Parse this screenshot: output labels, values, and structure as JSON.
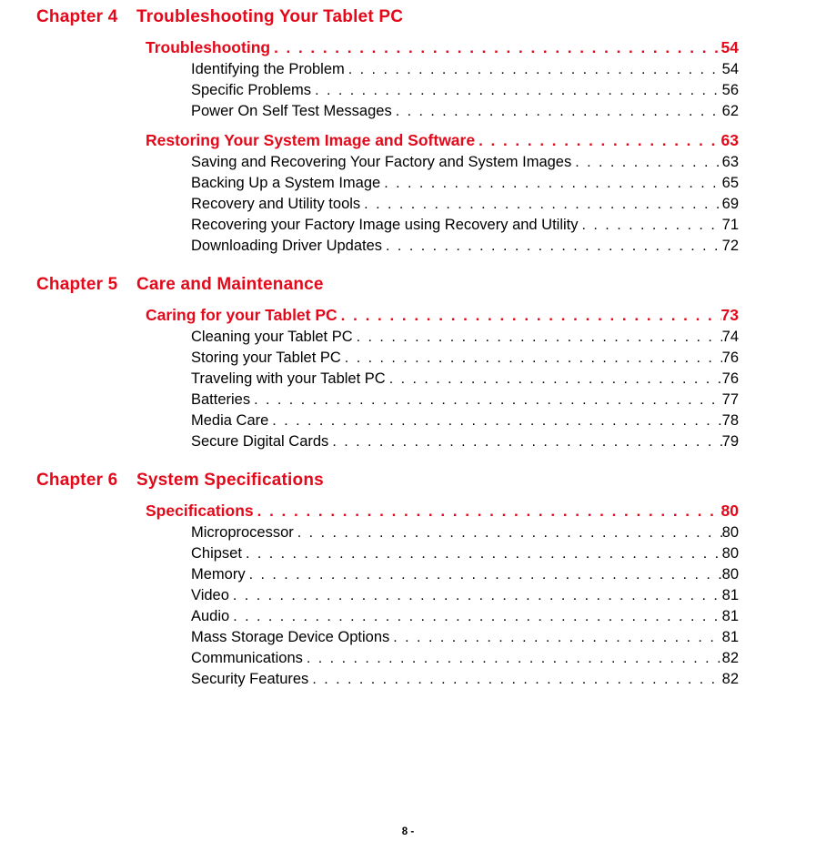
{
  "footer": "8 -",
  "colors": {
    "accent": "#e3091a",
    "text": "#000000",
    "background": "#ffffff"
  },
  "chapters": [
    {
      "num": "Chapter 4",
      "title": "Troubleshooting Your Tablet PC",
      "sections": [
        {
          "title": "Troubleshooting",
          "page": "54",
          "subs": [
            {
              "title": "Identifying the Problem",
              "page": "54"
            },
            {
              "title": "Specific Problems",
              "page": "56"
            },
            {
              "title": "Power On Self Test Messages",
              "page": "62"
            }
          ]
        },
        {
          "title": "Restoring Your System Image and Software",
          "page": "63",
          "subs": [
            {
              "title": "Saving and Recovering Your Factory and System Images",
              "page": "63"
            },
            {
              "title": "Backing Up a System Image",
              "page": "65"
            },
            {
              "title": "Recovery and Utility tools",
              "page": "69"
            },
            {
              "title": "Recovering your Factory Image using Recovery and Utility",
              "page": "71"
            },
            {
              "title": "Downloading Driver Updates",
              "page": "72"
            }
          ]
        }
      ]
    },
    {
      "num": "Chapter 5",
      "title": "Care and Maintenance",
      "sections": [
        {
          "title": "Caring for your Tablet PC",
          "page": "73",
          "subs": [
            {
              "title": "Cleaning your Tablet PC",
              "page": "74"
            },
            {
              "title": "Storing your Tablet PC",
              "page": "76"
            },
            {
              "title": "Traveling with your Tablet PC",
              "page": "76"
            },
            {
              "title": "Batteries",
              "page": "77"
            },
            {
              "title": "Media Care",
              "page": "78"
            },
            {
              "title": "Secure Digital Cards",
              "page": "79"
            }
          ]
        }
      ]
    },
    {
      "num": "Chapter 6",
      "title": "System Specifications",
      "sections": [
        {
          "title": "Specifications",
          "page": "80",
          "subs": [
            {
              "title": "Microprocessor",
              "page": "80"
            },
            {
              "title": "Chipset",
              "page": "80"
            },
            {
              "title": "Memory",
              "page": "80"
            },
            {
              "title": "Video",
              "page": "81"
            },
            {
              "title": "Audio",
              "page": "81"
            },
            {
              "title": "Mass Storage Device Options",
              "page": "81"
            },
            {
              "title": "Communications",
              "page": "82"
            },
            {
              "title": "Security Features",
              "page": "82"
            }
          ]
        }
      ]
    }
  ]
}
